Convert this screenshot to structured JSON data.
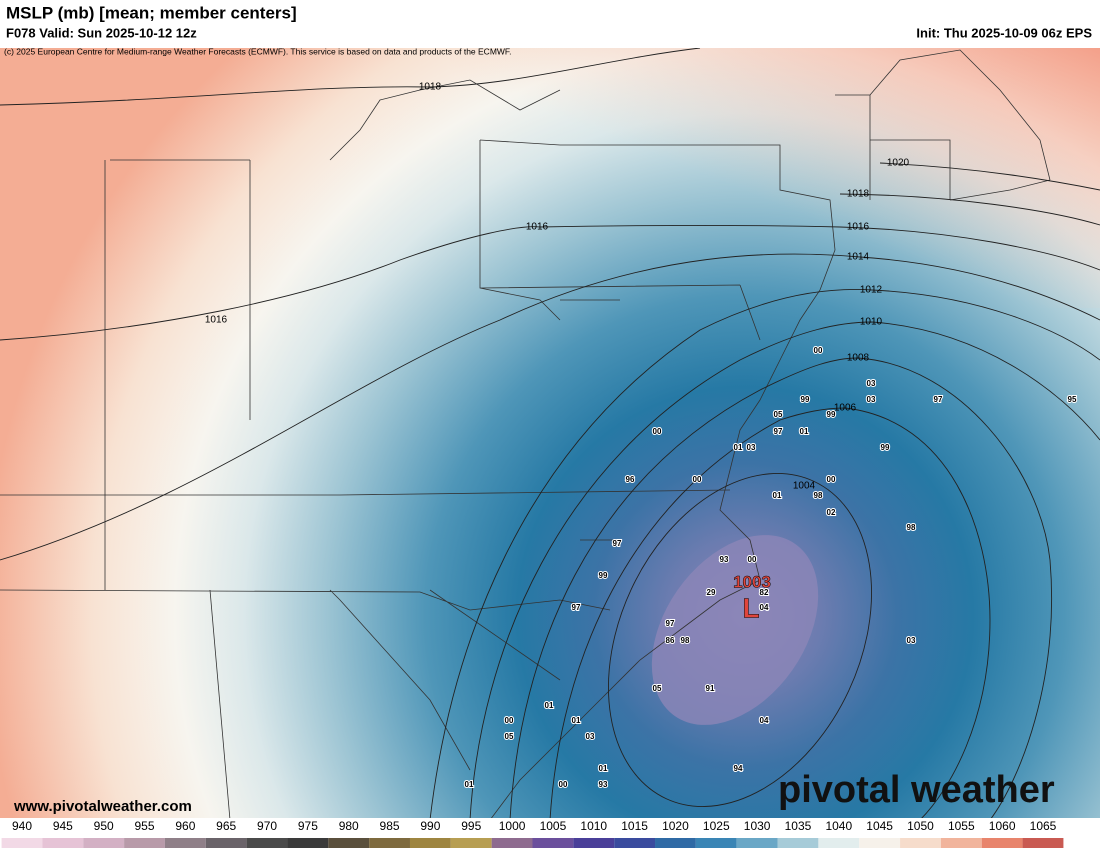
{
  "header": {
    "title": "MSLP (mb) [mean; member centers]",
    "valid": "F078 Valid: Sun 2025-10-12 12z",
    "init": "Init: Thu 2025-10-09 06z EPS",
    "copyright": "(c) 2025 European Centre for Medium-range Weather Forecasts (ECMWF). This service is based on data and products of the ECMWF."
  },
  "map": {
    "isobar_labels": [
      1018,
      1016,
      1016,
      1020,
      1018,
      1016,
      1014,
      1012,
      1010,
      1008,
      1006,
      1004
    ],
    "low": {
      "value": "1003",
      "symbol": "L"
    },
    "member_centers": [
      "00",
      "03",
      "99",
      "03",
      "97",
      "95",
      "05",
      "99",
      "97",
      "01",
      "00",
      "01",
      "03",
      "99",
      "96",
      "00",
      "00",
      "01",
      "98",
      "02",
      "98",
      "97",
      "93",
      "00",
      "99",
      "29",
      "82",
      "04",
      "97",
      "97",
      "86",
      "98",
      "03",
      "05",
      "91",
      "01",
      "00",
      "01",
      "04",
      "05",
      "03",
      "01",
      "94",
      "00",
      "93",
      "01"
    ]
  },
  "watermark": {
    "url": "www.pivotalweather.com",
    "logo": "pivotal weather"
  },
  "colorbar": {
    "ticks": [
      940,
      945,
      950,
      955,
      960,
      965,
      970,
      975,
      980,
      985,
      990,
      995,
      1000,
      1005,
      1010,
      1015,
      1020,
      1025,
      1030,
      1035,
      1040,
      1045,
      1050,
      1055,
      1060,
      1065
    ]
  }
}
